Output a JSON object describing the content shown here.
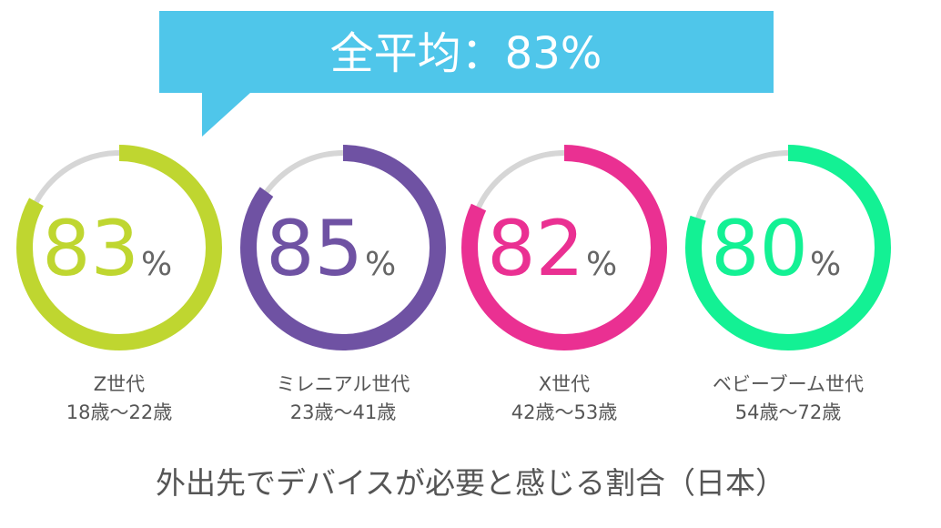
{
  "chart_data": {
    "type": "donut",
    "title": "外出先でデバイスが必要と感じる割合（日本）",
    "summary": {
      "label": "全平均",
      "separator": "：",
      "value": 83,
      "value_text": "83%"
    },
    "unit": "%",
    "max": 100,
    "track_color": "#d6d6d6",
    "banner_color": "#4fc6ea",
    "series": [
      {
        "generation": "Z世代",
        "age_range": "18歳〜22歳",
        "value": 83,
        "value_text": "83",
        "color": "#bfd630"
      },
      {
        "generation": "ミレニアル世代",
        "age_range": "23歳〜41歳",
        "value": 85,
        "value_text": "85",
        "color": "#6f52a3"
      },
      {
        "generation": "X世代",
        "age_range": "42歳〜53歳",
        "value": 82,
        "value_text": "82",
        "color": "#ea3092"
      },
      {
        "generation": "ベビーブーム世代",
        "age_range": "54歳〜72歳",
        "value": 80,
        "value_text": "80",
        "color": "#13f194"
      }
    ]
  }
}
